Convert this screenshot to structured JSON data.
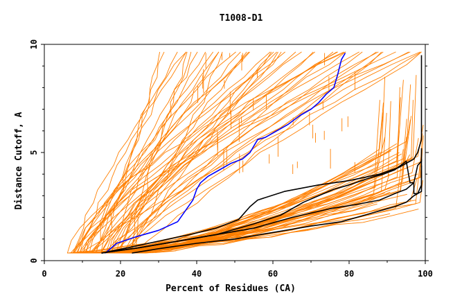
{
  "chart_data": {
    "type": "line",
    "title": "T1008-D1",
    "xlabel": "Percent of Residues (CA)",
    "ylabel": "Distance Cutoff, A",
    "xlim": [
      0,
      100
    ],
    "ylim": [
      0,
      10
    ],
    "x_ticks": [
      0,
      20,
      40,
      60,
      80,
      100
    ],
    "y_ticks": [
      0,
      5,
      10
    ],
    "grid": false,
    "legend": "none",
    "colors": {
      "bulk": "#ff7f00",
      "highlight": "#0000ff",
      "reference": "#000000"
    },
    "series": [
      {
        "style": "highlight",
        "color": "#0000ff",
        "x": [
          16,
          19,
          24,
          30,
          35,
          37,
          39,
          40,
          41,
          43,
          46,
          49,
          52,
          54,
          55,
          56,
          58,
          61,
          64,
          67,
          70,
          72,
          74,
          76,
          77,
          78,
          79
        ],
        "y": [
          0.35,
          0.8,
          1.1,
          1.4,
          1.8,
          2.3,
          2.8,
          3.3,
          3.6,
          3.9,
          4.2,
          4.5,
          4.7,
          5.0,
          5.3,
          5.6,
          5.7,
          6.0,
          6.3,
          6.7,
          7.0,
          7.3,
          7.7,
          8.0,
          8.6,
          9.3,
          9.6
        ]
      },
      {
        "style": "reference",
        "color": "#000000",
        "x": [
          15,
          22,
          30,
          38,
          45,
          51,
          54,
          56,
          63,
          72,
          80,
          88,
          93,
          96,
          97,
          98,
          99,
          99,
          99
        ],
        "y": [
          0.35,
          0.6,
          0.9,
          1.2,
          1.5,
          1.9,
          2.5,
          2.8,
          3.2,
          3.5,
          3.7,
          4.0,
          4.3,
          4.6,
          4.7,
          5.0,
          5.6,
          6.2,
          9.5
        ]
      },
      {
        "style": "reference",
        "color": "#000000",
        "x": [
          15,
          25,
          35,
          45,
          55,
          62,
          68,
          72,
          76,
          80,
          85,
          89,
          92,
          95,
          96,
          97,
          98,
          99,
          99
        ],
        "y": [
          0.35,
          0.6,
          0.9,
          1.2,
          1.7,
          2.1,
          2.7,
          3.0,
          3.3,
          3.5,
          3.8,
          4.0,
          4.2,
          4.6,
          3.6,
          3.6,
          4.4,
          4.6,
          4.7
        ]
      },
      {
        "style": "reference",
        "color": "#000000",
        "x": [
          15,
          25,
          35,
          45,
          55,
          65,
          75,
          82,
          88,
          92,
          95,
          97,
          97,
          98,
          99,
          99
        ],
        "y": [
          0.35,
          0.6,
          0.9,
          1.2,
          1.5,
          2.0,
          2.4,
          2.6,
          2.8,
          3.1,
          3.3,
          3.6,
          3.1,
          3.1,
          3.5,
          5.2
        ]
      },
      {
        "style": "reference",
        "color": "#000000",
        "x": [
          23,
          30,
          40,
          50,
          60,
          70,
          78,
          84,
          88,
          92,
          95,
          97,
          98,
          99,
          99
        ],
        "y": [
          0.35,
          0.55,
          0.8,
          1.0,
          1.3,
          1.6,
          1.8,
          2.1,
          2.3,
          2.5,
          2.7,
          3.0,
          3.1,
          3.2,
          4.4
        ]
      }
    ]
  }
}
